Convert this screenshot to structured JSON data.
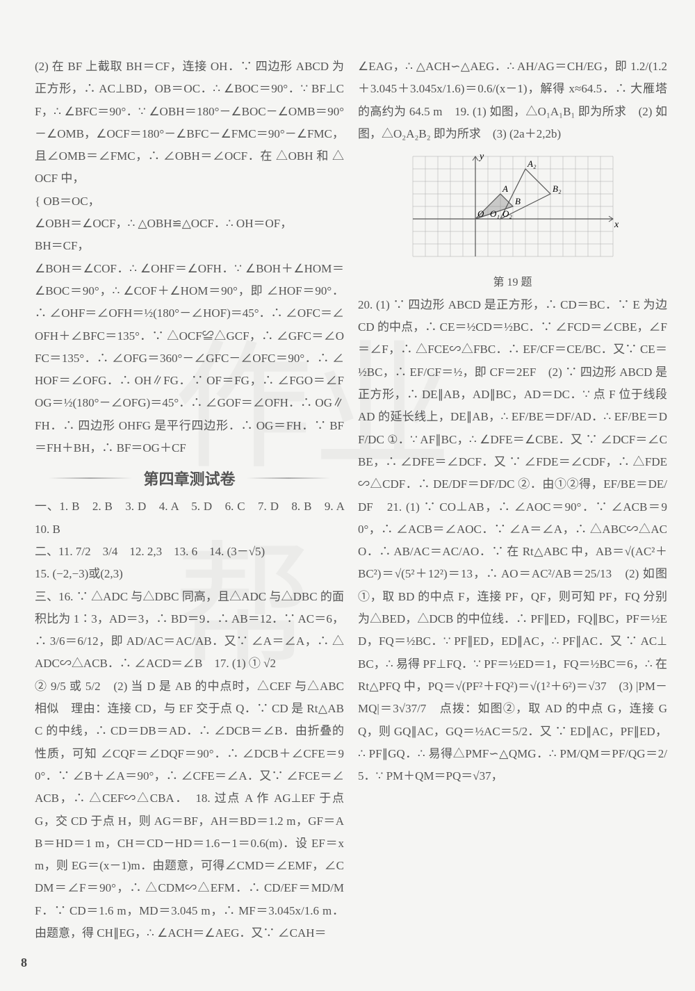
{
  "pageNumber": "8",
  "watermark": "作业帮",
  "left": {
    "p1": "(2) 在 BF 上截取 BH＝CF，连接 OH．∵ 四边形 ABCD 为正方形，∴ AC⊥BD，OB＝OC．∴ ∠BOC＝90°．∵ BF⊥CF，∴ ∠BFC＝90°．∵ ∠OBH＝180°－∠BOC－∠OMB＝90°－∠OMB，∠OCF＝180°－∠BFC－∠FMC＝90°－∠FMC，且∠OMB＝∠FMC，∴ ∠OBH＝∠OCF．在 △OBH 和 △OCF 中，",
    "p1b": "{ OB＝OC，",
    "p1c": "∠OBH＝∠OCF，∴ △OBH≌△OCF．∴ OH＝OF，",
    "p1d": "BH＝CF，",
    "p2": "∠BOH＝∠COF．∴ ∠OHF＝∠OFH．∵ ∠BOH＋∠HOM＝∠BOC＝90°，∴ ∠COF＋∠HOM＝90°，即 ∠HOF＝90°．∴ ∠OHF＝∠OFH＝½(180°－∠HOF)＝45°．∴ ∠OFC＝∠OFH＋∠BFC＝135°．∵ △OCF≌△GCF，∴ ∠GFC＝∠OFC＝135°．∴ ∠OFG＝360°－∠GFC－∠OFC＝90°．∴ ∠HOF＝∠OFG．∴ OH∥FG．∵ OF＝FG，∴ ∠FGO＝∠FOG＝½(180°－∠OFG)＝45°．∴ ∠GOF＝∠OFH．∴ OG∥FH．∴ 四边形 OHFG 是平行四边形．∴ OG＝FH．∵ BF＝FH＋BH，∴ BF＝OG＋CF",
    "bannerTitle": "第四章测试卷",
    "answers": "一、1. B　2. B　3. D　4. A　5. D　6. C　7. D　8. B　9. A　10. B",
    "fill": "二、11. 7/2　3/4　12. 2,3　13. 6　14. (3－√5)",
    "q15": "15. (−2,−3)或(2,3)",
    "q16": "三、16. ∵ △ADC 与△DBC 同高，且△ADC 与△DBC 的面积比为 1∶3，AD＝3，∴ BD＝9．∴ AB＝12．∵ AC＝6，∴ 3/6＝6/12，即 AD/AC＝AC/AB．又∵ ∠A＝∠A，∴ △ADC∽△ACB．∴ ∠ACD＝∠B　17. (1) ① √2",
    "q17b": "② 9/5 或 5/2　(2) 当 D 是 AB 的中点时，△CEF 与△ABC 相似　理由：连接 CD，与 EF 交于点 Q．∵ CD 是 Rt△ABC 的中线，∴ CD＝DB＝AD．∴ ∠DCB＝∠B．由折叠的性质，可知 ∠CQF＝∠DQF＝90°．∴ ∠DCB＋∠CFE＝90°．∵ ∠B＋∠A＝90°，∴ ∠CFE＝∠A．又∵ ∠FCE＝∠ACB，∴ △CEF∽△CBA．　18. 过点 A 作 AG⊥EF 于点 G，交 CD 于点 H，则 AG＝BF，AH＝BD＝1.2 m，GF＝AB＝HD＝1 m，CH＝CD－HD＝1.6－1＝0.6(m)．设 EF＝x m，则 EG＝(x－1)m．由题意，可得∠CMD＝∠EMF，∠CDM＝∠F＝90°，∴ △CDM∽△EFM．∴ CD/EF＝MD/MF．∵ CD＝1.6 m，MD＝3.045 m，∴ MF＝3.045x/1.6 m．由题意，得 CH∥EG，∴ ∠ACH＝∠AEG．又∵ ∠CAH＝"
  },
  "right": {
    "p1": "∠EAG，∴ △ACH∽△AEG．∴ AH/AG＝CH/EG，即 1.2/(1.2＋3.045＋3.045x/1.6)＝0.6/(x－1)，解得 x≈64.5．∴ 大雁塔的高约为 64.5 m　19. (1) 如图，△O₁A₁B₁ 即为所求　(2) 如图，△O₂A₂B₂ 即为所求　(3) (2a＋2,2b)",
    "figCaption": "第 19 题",
    "q20": "20. (1) ∵ 四边形 ABCD 是正方形，∴ CD＝BC．∵ E 为边 CD 的中点，∴ CE＝½CD＝½BC．∵ ∠FCD＝∠CBE，∠F＝∠F，∴ △FCE∽△FBC．∴ EF/CF＝CE/BC．又∵ CE＝½BC，∴ EF/CF＝½，即 CF＝2EF　(2) ∵ 四边形 ABCD 是正方形，∴ DE∥AB，AD∥BC，AD＝DC．∵ 点 F 位于线段 AD 的延长线上，DE∥AB，∴ EF/BE＝DF/AD．∴ EF/BE＝DF/DC ①．∵ AF∥BC，∴ ∠DFE＝∠CBE．又 ∵ ∠DCF＝∠CBE，∴ ∠DFE＝∠DCF．又 ∵ ∠FDE＝∠CDF，∴ △FDE∽△CDF．∴ DE/DF＝DF/DC ②．由①②得，EF/BE＝DE/DF　21. (1) ∵ CO⊥AB，∴ ∠AOC＝90°．∵ ∠ACB＝90°，∴ ∠ACB＝∠AOC．∵ ∠A＝∠A，∴ △ABC∽△ACO．∴ AB/AC＝AC/AO．∵ 在 Rt△ABC 中，AB＝√(AC²＋BC²)＝√(5²＋12²)＝13，∴ AO＝AC²/AB＝25/13　(2) 如图①，取 BD 的中点 F，连接 PF，QF，则可知 PF，FQ 分别为△BED，△DCB 的中位线．∴ PF∥ED，FQ∥BC，PF＝½ED，FQ＝½BC．∵ PF∥ED，ED∥AC，∴ PF∥AC．又 ∵ AC⊥BC，∴ 易得 PF⊥FQ．∵ PF＝½ED＝1，FQ＝½BC＝6，∴ 在 Rt△PFQ 中，PQ＝√(PF²＋FQ²)＝√(1²＋6²)＝√37　(3) |PM－MQ|＝3√37/7　点拨：如图②，取 AD 的中点 G，连接 GQ，则 GQ∥AC，GQ＝½AC＝5/2．又 ∵ ED∥AC，PF∥ED，∴ PF∥GQ．∴ 易得△PMF∽△QMG．∴ PM/QM＝PF/QG＝2/5．∵ PM＋QM＝PQ＝√37，",
    "grid": {
      "cols": 16,
      "rows": 8,
      "cell": 18,
      "stroke": "#aaa",
      "points": {
        "O": {
          "x": 5,
          "y": 5,
          "label": "O"
        },
        "O1": {
          "x": 6,
          "y": 5,
          "label": "O₁"
        },
        "O2": {
          "x": 7,
          "y": 5,
          "label": "O₂"
        },
        "A": {
          "x": 7,
          "y": 3,
          "label": "A"
        },
        "B": {
          "x": 8,
          "y": 4,
          "label": "B"
        },
        "A2": {
          "x": 9,
          "y": 1,
          "label": "A₂"
        },
        "B2": {
          "x": 11,
          "y": 3,
          "label": "B₂"
        }
      },
      "xlabel": "x",
      "ylabel": "y"
    }
  }
}
